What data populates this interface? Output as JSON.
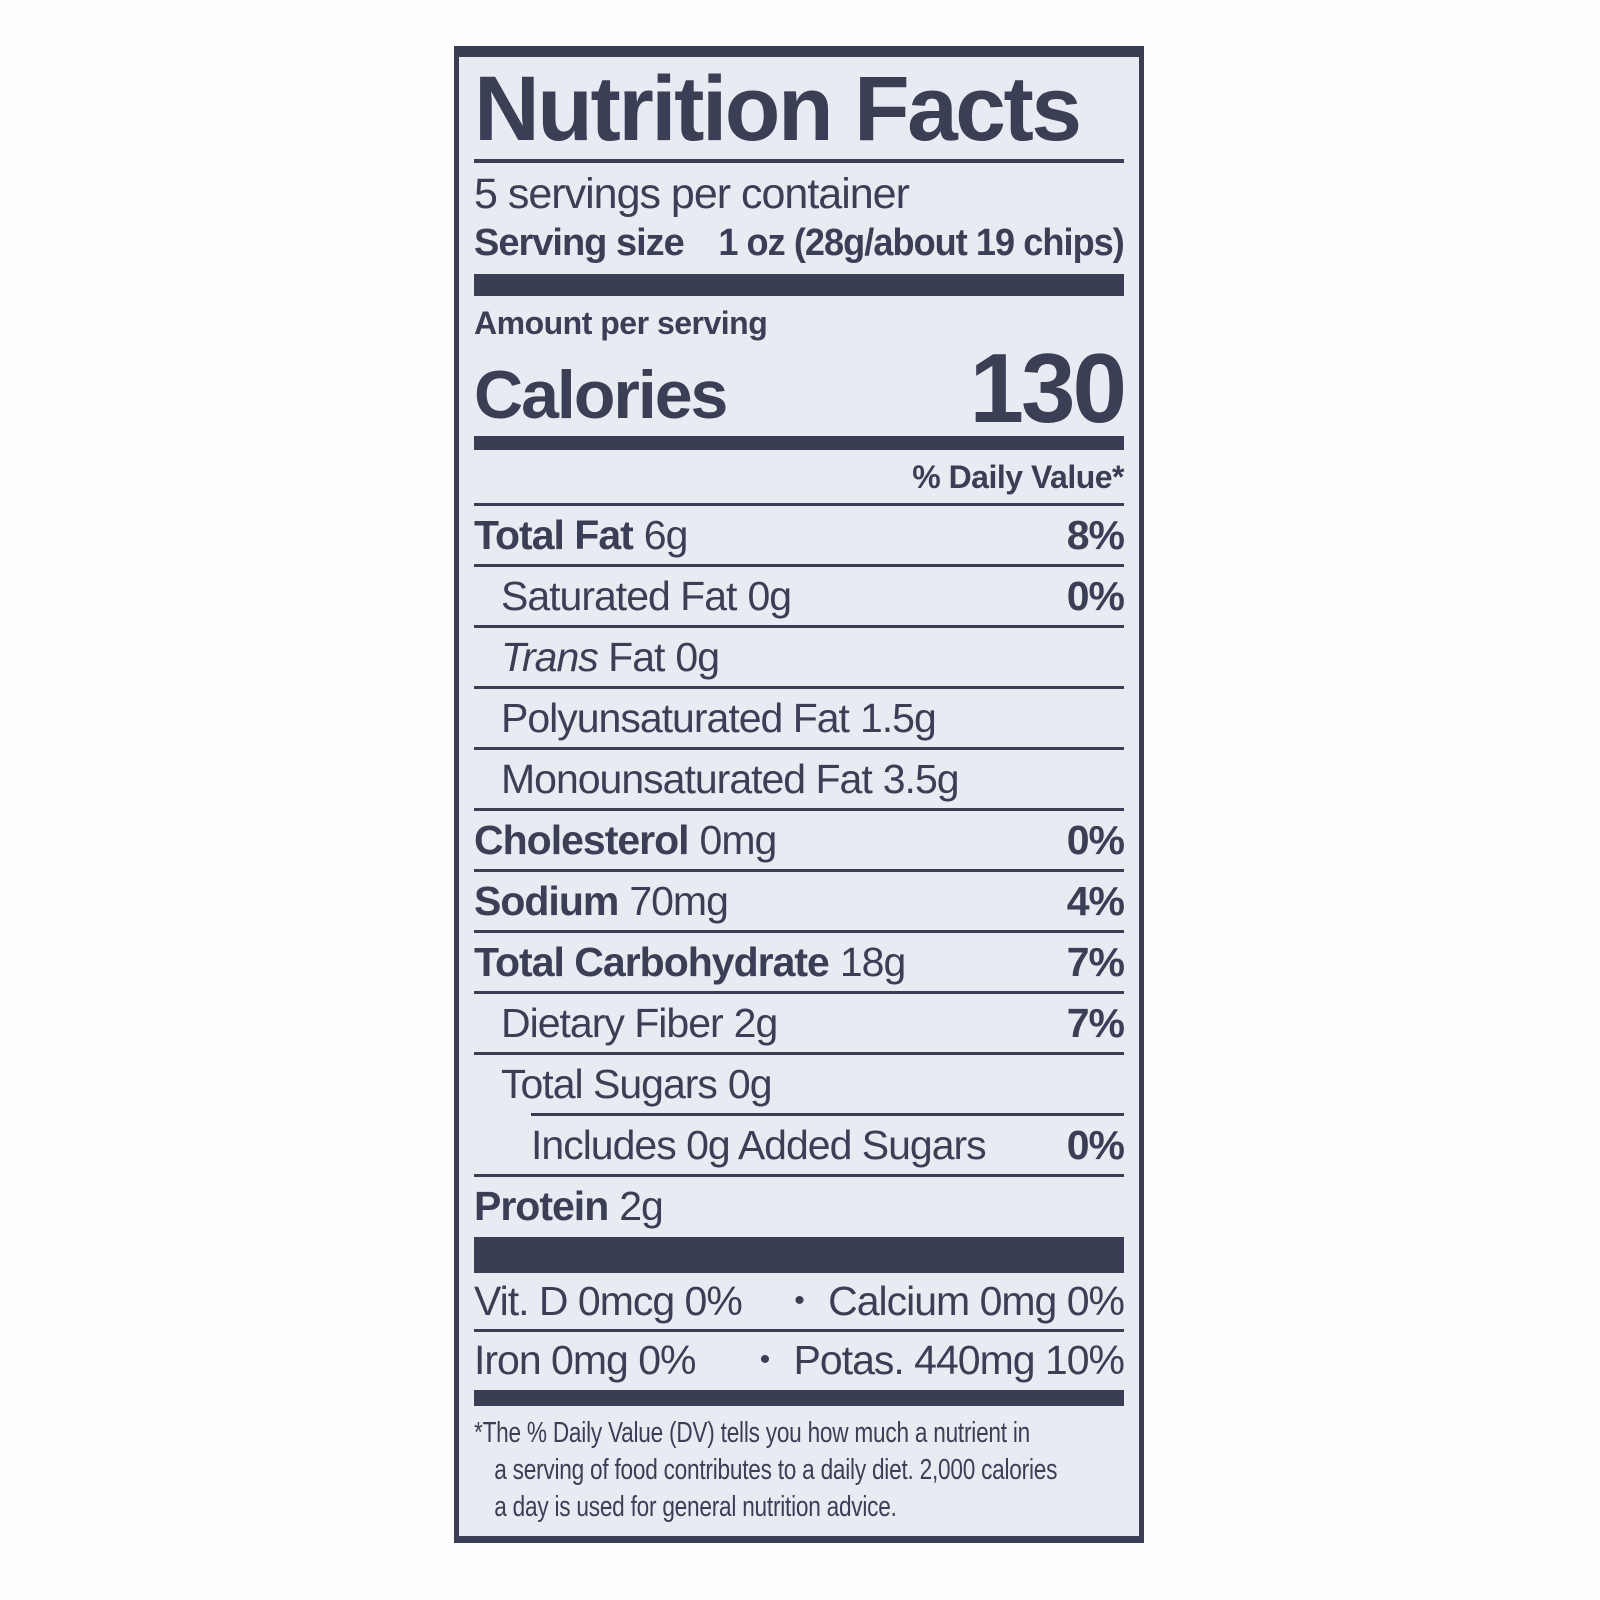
{
  "label": {
    "title": "Nutrition Facts",
    "servings_per_container": "5 servings per container",
    "serving_size_label": "Serving size",
    "serving_size_value": "1 oz (28g/about 19 chips)",
    "amount_per_serving": "Amount per serving",
    "calories_label": "Calories",
    "calories_value": "130",
    "daily_value_header": "% Daily Value*",
    "rows": [
      {
        "name": "Total Fat",
        "amount": "6g",
        "dv": "8%",
        "style": "bold",
        "indent": 0
      },
      {
        "name": "Saturated Fat",
        "amount": "0g",
        "dv": "0%",
        "style": "regular",
        "indent": 1
      },
      {
        "name_italic": "Trans",
        "name": " Fat",
        "amount": "0g",
        "dv": "",
        "style": "regular",
        "indent": 1
      },
      {
        "name": "Polyunsaturated Fat",
        "amount": "1.5g",
        "dv": "",
        "style": "regular",
        "indent": 1
      },
      {
        "name": "Monounsaturated Fat",
        "amount": "3.5g",
        "dv": "",
        "style": "regular",
        "indent": 1
      },
      {
        "name": "Cholesterol",
        "amount": "0mg",
        "dv": "0%",
        "style": "bold",
        "indent": 0
      },
      {
        "name": "Sodium",
        "amount": "70mg",
        "dv": "4%",
        "style": "bold",
        "indent": 0
      },
      {
        "name": "Total Carbohydrate",
        "amount": "18g",
        "dv": "7%",
        "style": "bold",
        "indent": 0
      },
      {
        "name": "Dietary Fiber",
        "amount": "2g",
        "dv": "7%",
        "style": "regular",
        "indent": 1
      },
      {
        "name": "Total Sugars",
        "amount": "0g",
        "dv": "",
        "style": "regular",
        "indent": 1
      },
      {
        "name": "Includes 0g Added Sugars",
        "amount": "",
        "dv": "0%",
        "style": "regular",
        "indent": 2,
        "rule_indent": true
      },
      {
        "name": "Protein",
        "amount": "2g",
        "dv": "",
        "style": "bold",
        "indent": 0
      }
    ],
    "bullet": "•",
    "micronutrients": [
      {
        "left": "Vit. D 0mcg 0%",
        "right": "Calcium 0mg 0%"
      },
      {
        "left": "Iron 0mg 0%",
        "right": "Potas. 440mg 10%"
      }
    ],
    "footnote_lines": [
      "*The % Daily Value (DV) tells you how much a nutrient in",
      "a serving of food contributes to a daily diet. 2,000 calories",
      "a day is used for general nutrition advice."
    ],
    "colors": {
      "ink": "#3a3e54",
      "label_bg": "#e9ebf3",
      "page_bg": "#ffffff"
    }
  }
}
